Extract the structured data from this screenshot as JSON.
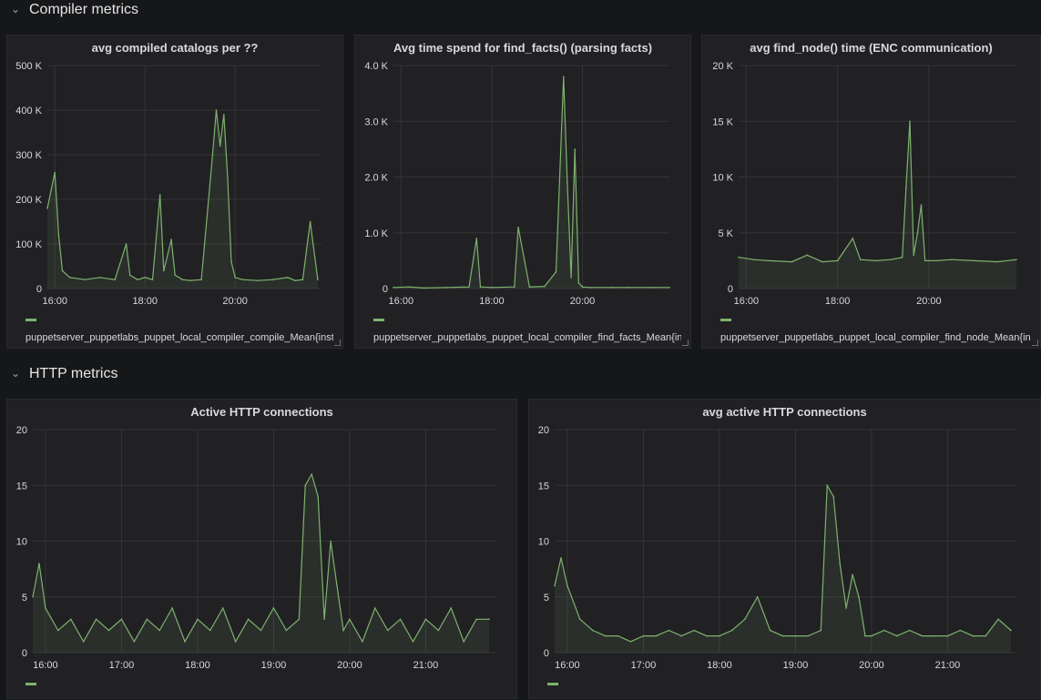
{
  "rows": [
    {
      "title": "Compiler metrics",
      "collapse_icon": "chevron-down-icon"
    },
    {
      "title": "HTTP metrics",
      "collapse_icon": "chevron-down-icon"
    }
  ],
  "colors": {
    "series": "#7eb26d",
    "background": "#161719",
    "panel": "#212124",
    "grid": "#343436"
  },
  "panels": [
    {
      "title": "avg compiled catalogs per ??",
      "legend": "puppetserver_puppetlabs_puppet_local_compiler_compile_Mean{instance",
      "chart_data": {
        "type": "line",
        "title": "avg compiled catalogs per ??",
        "x_ticks": [
          "16:00",
          "18:00",
          "20:00"
        ],
        "y_ticks": [
          "0",
          "100 K",
          "200 K",
          "300 K",
          "400 K",
          "500 K"
        ],
        "ylim": [
          0,
          500000
        ],
        "grid": true,
        "series": [
          {
            "name": "puppetserver_puppetlabs_puppet_local_compiler_compile_Mean",
            "x": [
              "15:50",
              "15:55",
              "16:00",
              "16:05",
              "16:10",
              "16:20",
              "16:40",
              "17:00",
              "17:20",
              "17:35",
              "17:40",
              "17:50",
              "18:00",
              "18:10",
              "18:20",
              "18:25",
              "18:35",
              "18:40",
              "18:50",
              "19:00",
              "19:15",
              "19:30",
              "19:35",
              "19:40",
              "19:45",
              "19:50",
              "19:55",
              "20:00",
              "20:10",
              "20:30",
              "20:50",
              "21:10",
              "21:20",
              "21:30",
              "21:40",
              "21:50"
            ],
            "values": [
              180000,
              220000,
              260000,
              120000,
              40000,
              25000,
              20000,
              25000,
              20000,
              100000,
              30000,
              20000,
              25000,
              20000,
              210000,
              40000,
              110000,
              30000,
              20000,
              18000,
              20000,
              300000,
              400000,
              320000,
              390000,
              250000,
              60000,
              25000,
              20000,
              18000,
              20000,
              25000,
              18000,
              20000,
              150000,
              20000
            ]
          }
        ]
      }
    },
    {
      "title": "Avg time spend for find_facts() (parsing facts)",
      "legend": "puppetserver_puppetlabs_puppet_local_compiler_find_facts_Mean{ins",
      "chart_data": {
        "type": "line",
        "title": "Avg time spend for find_facts() (parsing facts)",
        "x_ticks": [
          "16:00",
          "18:00",
          "20:00"
        ],
        "y_ticks": [
          "0",
          "1.0 K",
          "2.0 K",
          "3.0 K",
          "4.0 K"
        ],
        "ylim": [
          0,
          4000
        ],
        "grid": true,
        "series": [
          {
            "name": "puppetserver_puppetlabs_puppet_local_compiler_find_facts_Mean",
            "x": [
              "15:50",
              "16:10",
              "16:30",
              "17:00",
              "17:30",
              "17:40",
              "17:45",
              "18:00",
              "18:30",
              "18:35",
              "18:50",
              "19:10",
              "19:25",
              "19:35",
              "19:40",
              "19:45",
              "19:50",
              "19:55",
              "20:00",
              "20:10",
              "20:40",
              "21:00",
              "21:30",
              "21:55"
            ],
            "values": [
              20,
              30,
              10,
              20,
              30,
              900,
              30,
              20,
              30,
              1100,
              30,
              40,
              300,
              3800,
              1900,
              200,
              2500,
              100,
              30,
              20,
              20,
              20,
              20,
              20
            ]
          }
        ]
      }
    },
    {
      "title": "avg find_node() time (ENC communication)",
      "legend": "puppetserver_puppetlabs_puppet_local_compiler_find_node_Mean{ins",
      "chart_data": {
        "type": "line",
        "title": "avg find_node() time (ENC communication)",
        "x_ticks": [
          "16:00",
          "18:00",
          "20:00"
        ],
        "y_ticks": [
          "0",
          "5 K",
          "10 K",
          "15 K",
          "20 K"
        ],
        "ylim": [
          0,
          20000
        ],
        "grid": true,
        "series": [
          {
            "name": "puppetserver_puppetlabs_puppet_local_compiler_find_node_Mean",
            "x": [
              "15:50",
              "16:10",
              "16:30",
              "17:00",
              "17:20",
              "17:40",
              "18:00",
              "18:20",
              "18:30",
              "18:50",
              "19:10",
              "19:25",
              "19:30",
              "19:35",
              "19:40",
              "19:45",
              "19:50",
              "19:55",
              "20:10",
              "20:30",
              "21:00",
              "21:30",
              "21:55"
            ],
            "values": [
              2800,
              2600,
              2500,
              2400,
              3000,
              2400,
              2500,
              4500,
              2600,
              2500,
              2600,
              2800,
              9000,
              15000,
              3000,
              5000,
              7500,
              2500,
              2500,
              2600,
              2500,
              2400,
              2600
            ]
          }
        ]
      }
    },
    {
      "title": "Active HTTP connections",
      "legend": "",
      "chart_data": {
        "type": "line",
        "title": "Active HTTP connections",
        "x_ticks": [
          "16:00",
          "17:00",
          "18:00",
          "19:00",
          "20:00",
          "21:00"
        ],
        "y_ticks": [
          "0",
          "5",
          "10",
          "15",
          "20"
        ],
        "ylim": [
          0,
          20
        ],
        "grid": true,
        "series": [
          {
            "name": "",
            "x": [
              "15:50",
              "15:55",
              "16:00",
              "16:10",
              "16:20",
              "16:30",
              "16:40",
              "16:50",
              "17:00",
              "17:10",
              "17:20",
              "17:30",
              "17:40",
              "17:50",
              "18:00",
              "18:10",
              "18:20",
              "18:30",
              "18:40",
              "18:50",
              "19:00",
              "19:10",
              "19:20",
              "19:25",
              "19:30",
              "19:35",
              "19:40",
              "19:45",
              "19:50",
              "19:55",
              "20:00",
              "20:10",
              "20:20",
              "20:30",
              "20:40",
              "20:50",
              "21:00",
              "21:10",
              "21:20",
              "21:30",
              "21:40",
              "21:50"
            ],
            "values": [
              5,
              8,
              4,
              2,
              3,
              1,
              3,
              2,
              3,
              1,
              3,
              2,
              4,
              1,
              3,
              2,
              4,
              1,
              3,
              2,
              4,
              2,
              3,
              15,
              16,
              14,
              3,
              10,
              6,
              2,
              3,
              1,
              4,
              2,
              3,
              1,
              3,
              2,
              4,
              1,
              3,
              3
            ]
          }
        ]
      }
    },
    {
      "title": "avg active HTTP connections",
      "legend": "",
      "chart_data": {
        "type": "line",
        "title": "avg active HTTP connections",
        "x_ticks": [
          "16:00",
          "17:00",
          "18:00",
          "19:00",
          "20:00",
          "21:00"
        ],
        "y_ticks": [
          "0",
          "5",
          "10",
          "15",
          "20"
        ],
        "ylim": [
          0,
          20
        ],
        "grid": true,
        "series": [
          {
            "name": "",
            "x": [
              "15:50",
              "15:55",
              "16:00",
              "16:10",
              "16:20",
              "16:30",
              "16:40",
              "16:50",
              "17:00",
              "17:10",
              "17:20",
              "17:30",
              "17:40",
              "17:50",
              "18:00",
              "18:10",
              "18:20",
              "18:30",
              "18:40",
              "18:50",
              "19:00",
              "19:10",
              "19:20",
              "19:25",
              "19:30",
              "19:35",
              "19:40",
              "19:45",
              "19:50",
              "19:55",
              "20:00",
              "20:10",
              "20:20",
              "20:30",
              "20:40",
              "20:50",
              "21:00",
              "21:10",
              "21:20",
              "21:30",
              "21:40",
              "21:50"
            ],
            "values": [
              6,
              8.5,
              6,
              3,
              2,
              1.5,
              1.5,
              1,
              1.5,
              1.5,
              2,
              1.5,
              2,
              1.5,
              1.5,
              2,
              3,
              5,
              2,
              1.5,
              1.5,
              1.5,
              2,
              15,
              14,
              8,
              4,
              7,
              5,
              1.5,
              1.5,
              2,
              1.5,
              2,
              1.5,
              1.5,
              1.5,
              2,
              1.5,
              1.5,
              3,
              2
            ]
          }
        ]
      }
    }
  ]
}
